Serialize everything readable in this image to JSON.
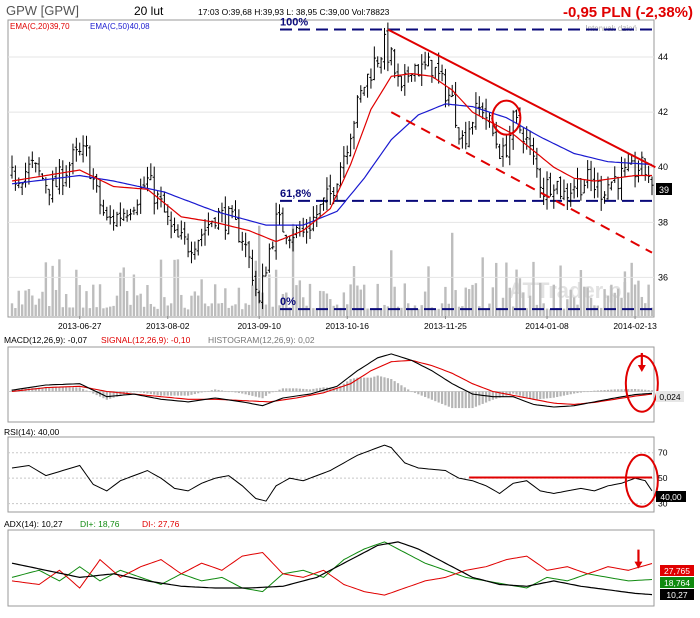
{
  "header": {
    "symbol": "GPW [GPW]",
    "date": "20 lut",
    "quote": "17:03  O:39,68  H:39,93  L: 38,95  C:39,00  Vol:78823",
    "change": "-0,95 PLN (-2,38%)",
    "interval": "Interwał: dzień",
    "watermark": "ATTrader.pl"
  },
  "colors": {
    "price": "#000000",
    "ema20": "#e00000",
    "ema50": "#1a1ad0",
    "volume": "#bdbdbd",
    "level": "#0a0a7a",
    "trend": "#e00000",
    "change": "#e00000",
    "di_plus": "#108a10",
    "di_minus": "#e00000",
    "adx": "#000000"
  },
  "chart_data": [
    {
      "type": "candlestick",
      "legend": {
        "ema20": "EMA(C,20)39,70",
        "ema50": "EMA(C,50)40,08"
      },
      "x_ticks": [
        "2013-06-27",
        "2013-08-02",
        "2013-09-10",
        "2013-10-16",
        "2013-11-25",
        "2014-01-08",
        "2014-02-13"
      ],
      "x_tick_index": [
        20,
        46,
        73,
        99,
        128,
        158,
        184
      ],
      "bar_count": 190,
      "y_ticks": [
        36,
        38,
        40,
        42,
        44
      ],
      "ylim": [
        34.6,
        45.2
      ],
      "price_marker": "39",
      "price_path": [
        [
          0,
          39.6
        ],
        [
          6,
          40.0
        ],
        [
          12,
          39.2
        ],
        [
          18,
          40.3
        ],
        [
          22,
          40.5
        ],
        [
          25,
          39.0
        ],
        [
          28,
          38.0
        ],
        [
          32,
          38.3
        ],
        [
          36,
          38.8
        ],
        [
          40,
          39.5
        ],
        [
          44,
          38.6
        ],
        [
          48,
          37.4
        ],
        [
          52,
          37.2
        ],
        [
          56,
          37.6
        ],
        [
          60,
          38.3
        ],
        [
          64,
          38.1
        ],
        [
          68,
          37.5
        ],
        [
          71,
          36.2
        ],
        [
          73,
          35.0
        ],
        [
          75,
          36.5
        ],
        [
          78,
          38.0
        ],
        [
          82,
          37.7
        ],
        [
          86,
          37.6
        ],
        [
          90,
          38.3
        ],
        [
          94,
          39.0
        ],
        [
          98,
          40.5
        ],
        [
          101,
          41.8
        ],
        [
          104,
          43.0
        ],
        [
          107,
          43.8
        ],
        [
          110,
          44.4
        ],
        [
          112,
          43.9
        ],
        [
          115,
          42.6
        ],
        [
          118,
          43.8
        ],
        [
          121,
          43.5
        ],
        [
          124,
          43.7
        ],
        [
          127,
          43.0
        ],
        [
          130,
          42.4
        ],
        [
          133,
          41.0
        ],
        [
          136,
          41.8
        ],
        [
          139,
          42.2
        ],
        [
          142,
          41.2
        ],
        [
          145,
          40.4
        ],
        [
          148,
          41.6
        ],
        [
          151,
          41.3
        ],
        [
          154,
          40.2
        ],
        [
          157,
          39.2
        ],
        [
          160,
          39.6
        ],
        [
          163,
          39.0
        ],
        [
          166,
          39.4
        ],
        [
          170,
          39.5
        ],
        [
          174,
          39.2
        ],
        [
          178,
          39.6
        ],
        [
          182,
          39.7
        ],
        [
          185,
          40.0
        ],
        [
          188,
          39.8
        ],
        [
          189,
          39.0
        ]
      ],
      "ema20_path": [
        [
          0,
          39.5
        ],
        [
          10,
          39.7
        ],
        [
          20,
          39.9
        ],
        [
          30,
          39.3
        ],
        [
          40,
          39.2
        ],
        [
          50,
          38.2
        ],
        [
          60,
          38.0
        ],
        [
          70,
          37.7
        ],
        [
          78,
          37.3
        ],
        [
          86,
          37.7
        ],
        [
          94,
          38.5
        ],
        [
          100,
          40.1
        ],
        [
          106,
          42.1
        ],
        [
          112,
          43.3
        ],
        [
          118,
          43.4
        ],
        [
          124,
          43.3
        ],
        [
          130,
          42.8
        ],
        [
          136,
          42.0
        ],
        [
          142,
          41.6
        ],
        [
          148,
          41.2
        ],
        [
          154,
          40.6
        ],
        [
          160,
          40.0
        ],
        [
          166,
          39.6
        ],
        [
          172,
          39.5
        ],
        [
          178,
          39.6
        ],
        [
          184,
          39.7
        ],
        [
          189,
          39.7
        ]
      ],
      "ema50_path": [
        [
          0,
          39.4
        ],
        [
          20,
          39.7
        ],
        [
          30,
          39.5
        ],
        [
          45,
          39.1
        ],
        [
          60,
          38.4
        ],
        [
          75,
          37.9
        ],
        [
          86,
          37.9
        ],
        [
          96,
          38.4
        ],
        [
          104,
          39.6
        ],
        [
          112,
          41.0
        ],
        [
          120,
          41.9
        ],
        [
          128,
          42.3
        ],
        [
          136,
          42.2
        ],
        [
          146,
          41.8
        ],
        [
          156,
          41.1
        ],
        [
          166,
          40.5
        ],
        [
          176,
          40.2
        ],
        [
          189,
          40.1
        ]
      ],
      "volume_levels": [
        0.1,
        0.25,
        0.45,
        0.7
      ],
      "fib_levels": [
        {
          "label": "100%",
          "value": 45.0
        },
        {
          "label": "61,8%",
          "value": 38.78
        },
        {
          "label": "0%",
          "value": 34.85
        }
      ],
      "trendlines": [
        {
          "from": [
            111,
            45.0
          ],
          "to": [
            190,
            40.0
          ]
        },
        {
          "from": [
            112,
            42.0
          ],
          "to": [
            189,
            36.9
          ],
          "dashed": true
        }
      ],
      "circles": [
        {
          "at": [
            146,
            41.8
          ],
          "r_x": 14,
          "r_y": 17
        }
      ]
    },
    {
      "type": "line",
      "title": "MACD(12,26,9): -0,07",
      "legend": {
        "signal": "SIGNAL(12,26,9): -0,10",
        "histogram": "HISTOGRAM(12,26,9): 0,02"
      },
      "ylim": [
        -1.1,
        1.6
      ],
      "macd_path": [
        [
          0,
          0.05
        ],
        [
          10,
          0.25
        ],
        [
          20,
          0.3
        ],
        [
          28,
          -0.2
        ],
        [
          36,
          -0.1
        ],
        [
          44,
          -0.3
        ],
        [
          52,
          -0.4
        ],
        [
          60,
          -0.25
        ],
        [
          68,
          -0.4
        ],
        [
          74,
          -0.55
        ],
        [
          80,
          -0.25
        ],
        [
          88,
          -0.1
        ],
        [
          96,
          0.2
        ],
        [
          102,
          0.8
        ],
        [
          108,
          1.3
        ],
        [
          112,
          1.45
        ],
        [
          118,
          1.2
        ],
        [
          124,
          0.8
        ],
        [
          130,
          0.3
        ],
        [
          136,
          -0.1
        ],
        [
          142,
          -0.2
        ],
        [
          148,
          -0.2
        ],
        [
          154,
          -0.5
        ],
        [
          160,
          -0.6
        ],
        [
          166,
          -0.55
        ],
        [
          172,
          -0.4
        ],
        [
          178,
          -0.25
        ],
        [
          184,
          -0.12
        ],
        [
          189,
          -0.07
        ]
      ],
      "signal_path": [
        [
          0,
          0.0
        ],
        [
          10,
          0.15
        ],
        [
          20,
          0.2
        ],
        [
          28,
          0.0
        ],
        [
          36,
          -0.1
        ],
        [
          44,
          -0.2
        ],
        [
          52,
          -0.3
        ],
        [
          60,
          -0.3
        ],
        [
          68,
          -0.35
        ],
        [
          76,
          -0.4
        ],
        [
          84,
          -0.25
        ],
        [
          92,
          -0.05
        ],
        [
          100,
          0.3
        ],
        [
          106,
          0.8
        ],
        [
          112,
          1.15
        ],
        [
          118,
          1.2
        ],
        [
          124,
          1.0
        ],
        [
          130,
          0.7
        ],
        [
          136,
          0.3
        ],
        [
          142,
          0.0
        ],
        [
          148,
          -0.15
        ],
        [
          154,
          -0.3
        ],
        [
          160,
          -0.45
        ],
        [
          166,
          -0.5
        ],
        [
          172,
          -0.42
        ],
        [
          178,
          -0.3
        ],
        [
          184,
          -0.18
        ],
        [
          189,
          -0.1
        ]
      ],
      "marker": "0,024",
      "circles": [
        {
          "at": [
            186,
            0.3
          ],
          "r_x": 16,
          "r_y": 28
        }
      ],
      "arrow_at": [
        186,
        1.1
      ]
    },
    {
      "type": "line",
      "title": "RSI(14): 40,00",
      "y_ticks": [
        30,
        50,
        70
      ],
      "ylim": [
        25,
        80
      ],
      "rsi_path": [
        [
          0,
          58
        ],
        [
          5,
          60
        ],
        [
          10,
          52
        ],
        [
          15,
          56
        ],
        [
          20,
          60
        ],
        [
          24,
          45
        ],
        [
          28,
          40
        ],
        [
          32,
          48
        ],
        [
          36,
          52
        ],
        [
          40,
          56
        ],
        [
          44,
          50
        ],
        [
          48,
          42
        ],
        [
          52,
          40
        ],
        [
          56,
          46
        ],
        [
          60,
          50
        ],
        [
          64,
          52
        ],
        [
          68,
          44
        ],
        [
          72,
          34
        ],
        [
          75,
          32
        ],
        [
          78,
          44
        ],
        [
          82,
          50
        ],
        [
          86,
          48
        ],
        [
          90,
          52
        ],
        [
          94,
          56
        ],
        [
          98,
          62
        ],
        [
          102,
          68
        ],
        [
          106,
          72
        ],
        [
          110,
          76
        ],
        [
          112,
          74
        ],
        [
          116,
          62
        ],
        [
          120,
          58
        ],
        [
          124,
          57
        ],
        [
          128,
          56
        ],
        [
          132,
          50
        ],
        [
          136,
          48
        ],
        [
          140,
          44
        ],
        [
          144,
          38
        ],
        [
          148,
          46
        ],
        [
          152,
          48
        ],
        [
          156,
          40
        ],
        [
          160,
          38
        ],
        [
          164,
          40
        ],
        [
          168,
          42
        ],
        [
          172,
          40
        ],
        [
          176,
          44
        ],
        [
          180,
          46
        ],
        [
          184,
          50
        ],
        [
          187,
          48
        ],
        [
          189,
          40
        ]
      ],
      "resistance": {
        "from": [
          135,
          50.5
        ],
        "to": [
          189,
          50.5
        ]
      },
      "marker": "40,00",
      "circles": [
        {
          "at": [
            186,
            48
          ],
          "r_x": 16,
          "r_y": 26
        }
      ]
    },
    {
      "type": "line",
      "title": "ADX(14): 10,27",
      "legend": {
        "di_plus": "DI+: 18,76",
        "di_minus": "DI-: 27,76"
      },
      "ylim": [
        5,
        45
      ],
      "adx_path": [
        [
          0,
          28
        ],
        [
          10,
          24
        ],
        [
          20,
          20
        ],
        [
          30,
          22
        ],
        [
          40,
          18
        ],
        [
          50,
          15
        ],
        [
          60,
          14
        ],
        [
          70,
          14
        ],
        [
          80,
          15
        ],
        [
          90,
          20
        ],
        [
          100,
          30
        ],
        [
          108,
          38
        ],
        [
          114,
          40
        ],
        [
          120,
          36
        ],
        [
          128,
          28
        ],
        [
          136,
          20
        ],
        [
          144,
          16
        ],
        [
          152,
          15
        ],
        [
          160,
          18
        ],
        [
          168,
          15
        ],
        [
          176,
          13
        ],
        [
          184,
          11
        ],
        [
          189,
          10.3
        ]
      ],
      "di_plus_path": [
        [
          0,
          20
        ],
        [
          8,
          24
        ],
        [
          14,
          18
        ],
        [
          20,
          26
        ],
        [
          26,
          18
        ],
        [
          32,
          24
        ],
        [
          38,
          20
        ],
        [
          44,
          16
        ],
        [
          50,
          22
        ],
        [
          56,
          18
        ],
        [
          62,
          20
        ],
        [
          68,
          14
        ],
        [
          74,
          12
        ],
        [
          80,
          22
        ],
        [
          86,
          24
        ],
        [
          92,
          20
        ],
        [
          98,
          30
        ],
        [
          104,
          36
        ],
        [
          110,
          40
        ],
        [
          116,
          34
        ],
        [
          122,
          28
        ],
        [
          128,
          24
        ],
        [
          134,
          20
        ],
        [
          140,
          18
        ],
        [
          146,
          16
        ],
        [
          152,
          14
        ],
        [
          158,
          20
        ],
        [
          164,
          18
        ],
        [
          170,
          22
        ],
        [
          176,
          20
        ],
        [
          182,
          18
        ],
        [
          189,
          18.8
        ]
      ],
      "di_minus_path": [
        [
          0,
          18
        ],
        [
          8,
          16
        ],
        [
          14,
          24
        ],
        [
          20,
          14
        ],
        [
          26,
          30
        ],
        [
          32,
          20
        ],
        [
          38,
          26
        ],
        [
          44,
          30
        ],
        [
          50,
          22
        ],
        [
          56,
          28
        ],
        [
          62,
          24
        ],
        [
          68,
          32
        ],
        [
          74,
          34
        ],
        [
          80,
          22
        ],
        [
          86,
          20
        ],
        [
          92,
          24
        ],
        [
          98,
          16
        ],
        [
          104,
          12
        ],
        [
          110,
          10
        ],
        [
          116,
          14
        ],
        [
          122,
          18
        ],
        [
          128,
          20
        ],
        [
          134,
          24
        ],
        [
          140,
          26
        ],
        [
          146,
          30
        ],
        [
          152,
          32
        ],
        [
          158,
          24
        ],
        [
          164,
          26
        ],
        [
          170,
          22
        ],
        [
          176,
          26
        ],
        [
          182,
          24
        ],
        [
          189,
          27.8
        ]
      ],
      "markers": [
        "27,765",
        "18,764",
        "10,27"
      ],
      "arrow_at": [
        185,
        30
      ]
    }
  ]
}
